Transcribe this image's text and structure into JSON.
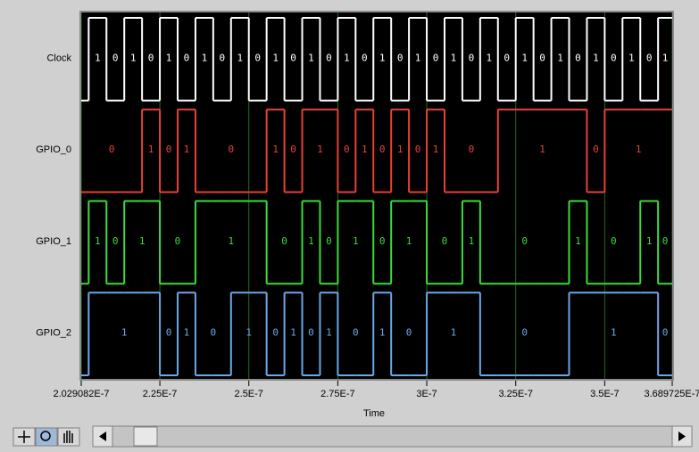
{
  "chart_data": {
    "type": "digital",
    "xlabel": "Time",
    "x": [
      2e-07,
      2.05e-07,
      2.1e-07,
      2.15e-07,
      2.2e-07,
      2.25e-07,
      2.3e-07,
      2.35e-07,
      2.4e-07,
      2.45e-07,
      2.5e-07,
      2.55e-07,
      2.6e-07,
      2.65e-07,
      2.7e-07,
      2.75e-07,
      2.8e-07,
      2.85e-07,
      2.9e-07,
      2.95e-07,
      3e-07,
      3.05e-07,
      3.1e-07,
      3.15e-07,
      3.2e-07,
      3.25e-07,
      3.3e-07,
      3.35e-07,
      3.4e-07,
      3.45e-07,
      3.5e-07,
      3.55e-07,
      3.6e-07,
      3.65e-07
    ],
    "series": [
      {
        "name": "Clock",
        "color": "#ffffff",
        "values": [
          0,
          1,
          0,
          1,
          0,
          1,
          0,
          1,
          0,
          1,
          0,
          1,
          0,
          1,
          0,
          1,
          0,
          1,
          0,
          1,
          0,
          1,
          0,
          1,
          0,
          1,
          0,
          1,
          0,
          1,
          0,
          1,
          0,
          1
        ]
      },
      {
        "name": "GPIO_0",
        "color": "#e8403c",
        "values": [
          0,
          0,
          0,
          0,
          1,
          0,
          1,
          0,
          0,
          0,
          0,
          1,
          0,
          1,
          1,
          0,
          1,
          0,
          1,
          0,
          1,
          0,
          0,
          0,
          1,
          1,
          1,
          1,
          1,
          0,
          1,
          1,
          1,
          1
        ]
      },
      {
        "name": "GPIO_1",
        "color": "#3cdc3c",
        "values": [
          0,
          1,
          0,
          1,
          1,
          0,
          0,
          1,
          1,
          1,
          1,
          0,
          0,
          1,
          0,
          1,
          1,
          0,
          1,
          1,
          0,
          0,
          1,
          0,
          0,
          0,
          0,
          0,
          1,
          0,
          0,
          0,
          1,
          0
        ]
      },
      {
        "name": "GPIO_2",
        "color": "#6aa8e8",
        "values": [
          0,
          1,
          1,
          1,
          1,
          0,
          1,
          0,
          0,
          1,
          1,
          0,
          1,
          0,
          1,
          0,
          0,
          1,
          0,
          0,
          1,
          1,
          1,
          0,
          0,
          0,
          0,
          0,
          1,
          1,
          1,
          1,
          1,
          0
        ]
      }
    ],
    "xlim": [
      2.029082e-07,
      3.689725e-07
    ],
    "xticks": [
      {
        "value": 2.029082e-07,
        "label": "2.029082E-7"
      },
      {
        "value": 2.25e-07,
        "label": "2.25E-7"
      },
      {
        "value": 2.5e-07,
        "label": "2.5E-7"
      },
      {
        "value": 2.75e-07,
        "label": "2.75E-7"
      },
      {
        "value": 3e-07,
        "label": "3E-7"
      },
      {
        "value": 3.25e-07,
        "label": "3.25E-7"
      },
      {
        "value": 3.5e-07,
        "label": "3.5E-7"
      },
      {
        "value": 3.689725e-07,
        "label": "3.689725E-7"
      }
    ],
    "grid": true,
    "grid_color": "#1f6e1f",
    "background": "#000000"
  }
}
